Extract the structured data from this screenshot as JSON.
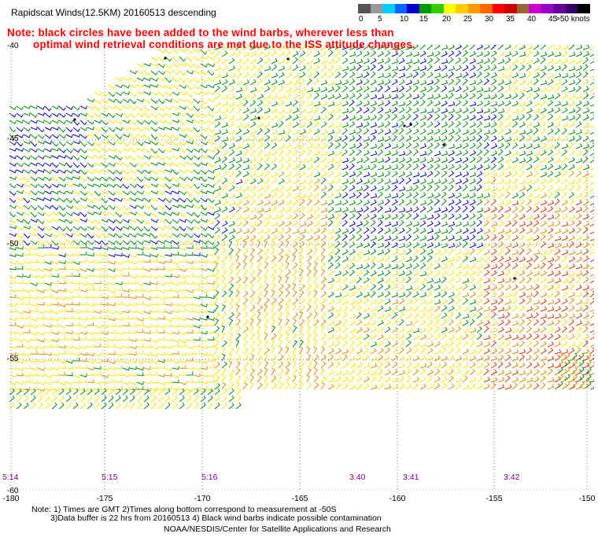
{
  "title": "Rapidscat Winds(12.5KM) 20160513 descending",
  "note": {
    "line1": "Note: black circles have been added to the wind barbs, wherever less than",
    "line2": "optimal wind retrieval conditions are met due to the ISS attitude changes."
  },
  "speed_scale": {
    "labels": [
      "0",
      "5",
      "10",
      "15",
      "20",
      "25",
      "30",
      "35",
      "40",
      "45",
      ">50 knots"
    ],
    "colors": [
      "#555555",
      "#999999",
      "#00ccff",
      "#0066ff",
      "#0000cc",
      "#009900",
      "#33cc00",
      "#ffff00",
      "#ffcc00",
      "#ff9900",
      "#ff6600",
      "#ff0000",
      "#cc0000",
      "#996633",
      "#cc00cc",
      "#9900cc",
      "#660099",
      "#330066",
      "#000000"
    ]
  },
  "axes": {
    "lat_labels": [
      "-40",
      "-45",
      "-50",
      "-55",
      "-60"
    ],
    "lon_labels": [
      "-180",
      "-175",
      "-170",
      "-165",
      "-160",
      "-155",
      "-150"
    ]
  },
  "pass_times": [
    "5:14",
    "5:15",
    "5:16",
    "3:40",
    "3:41",
    "3:42"
  ],
  "footer": {
    "line1": "Note: 1) Times are GMT 2)Times along bottom correspond to measurement at -50S",
    "line2": "3)Data buffer is 22 hrs from 20160513 4) Black wind barbs indicate possible contamination",
    "line3": "NOAA/NESDIS/Center for Satellite Applications and Research"
  },
  "barb_colors": {
    "green": "#008f00",
    "blue": "#0000cc",
    "yellow": "#f2e600",
    "orange": "#e08c00",
    "red_orange": "#dd3300",
    "black": "#000000"
  }
}
